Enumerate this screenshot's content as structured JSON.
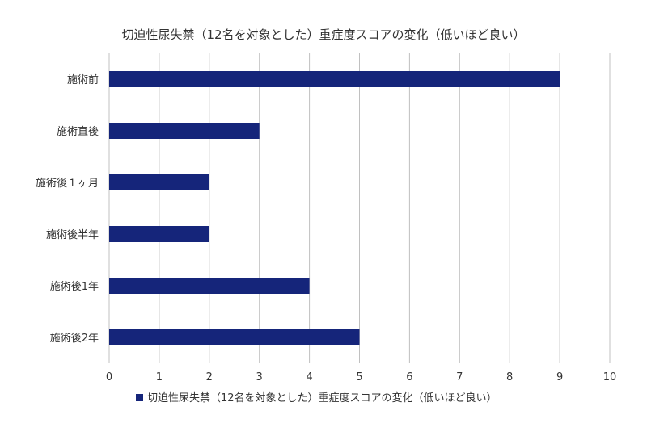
{
  "chart_data": {
    "type": "bar",
    "orientation": "horizontal",
    "title": "切迫性尿失禁（12名を対象とした）重症度スコアの変化（低いほど良い）",
    "categories": [
      "施術前",
      "施術直後",
      "施術後１ヶ月",
      "施術後半年",
      "施術後1年",
      "施術後2年"
    ],
    "series": [
      {
        "name": "切迫性尿失禁（12名を対象とした）重症度スコアの変化（低いほど良い）",
        "values": [
          9,
          3,
          2,
          2,
          4,
          5
        ]
      }
    ],
    "xlim": [
      0,
      10
    ],
    "xticks": [
      "0",
      "1",
      "2",
      "3",
      "4",
      "5",
      "6",
      "7",
      "8",
      "9",
      "10"
    ],
    "grid": true,
    "legend_position": "bottom",
    "bar_color": "#15257a",
    "grid_color": "#c0c0c0"
  }
}
